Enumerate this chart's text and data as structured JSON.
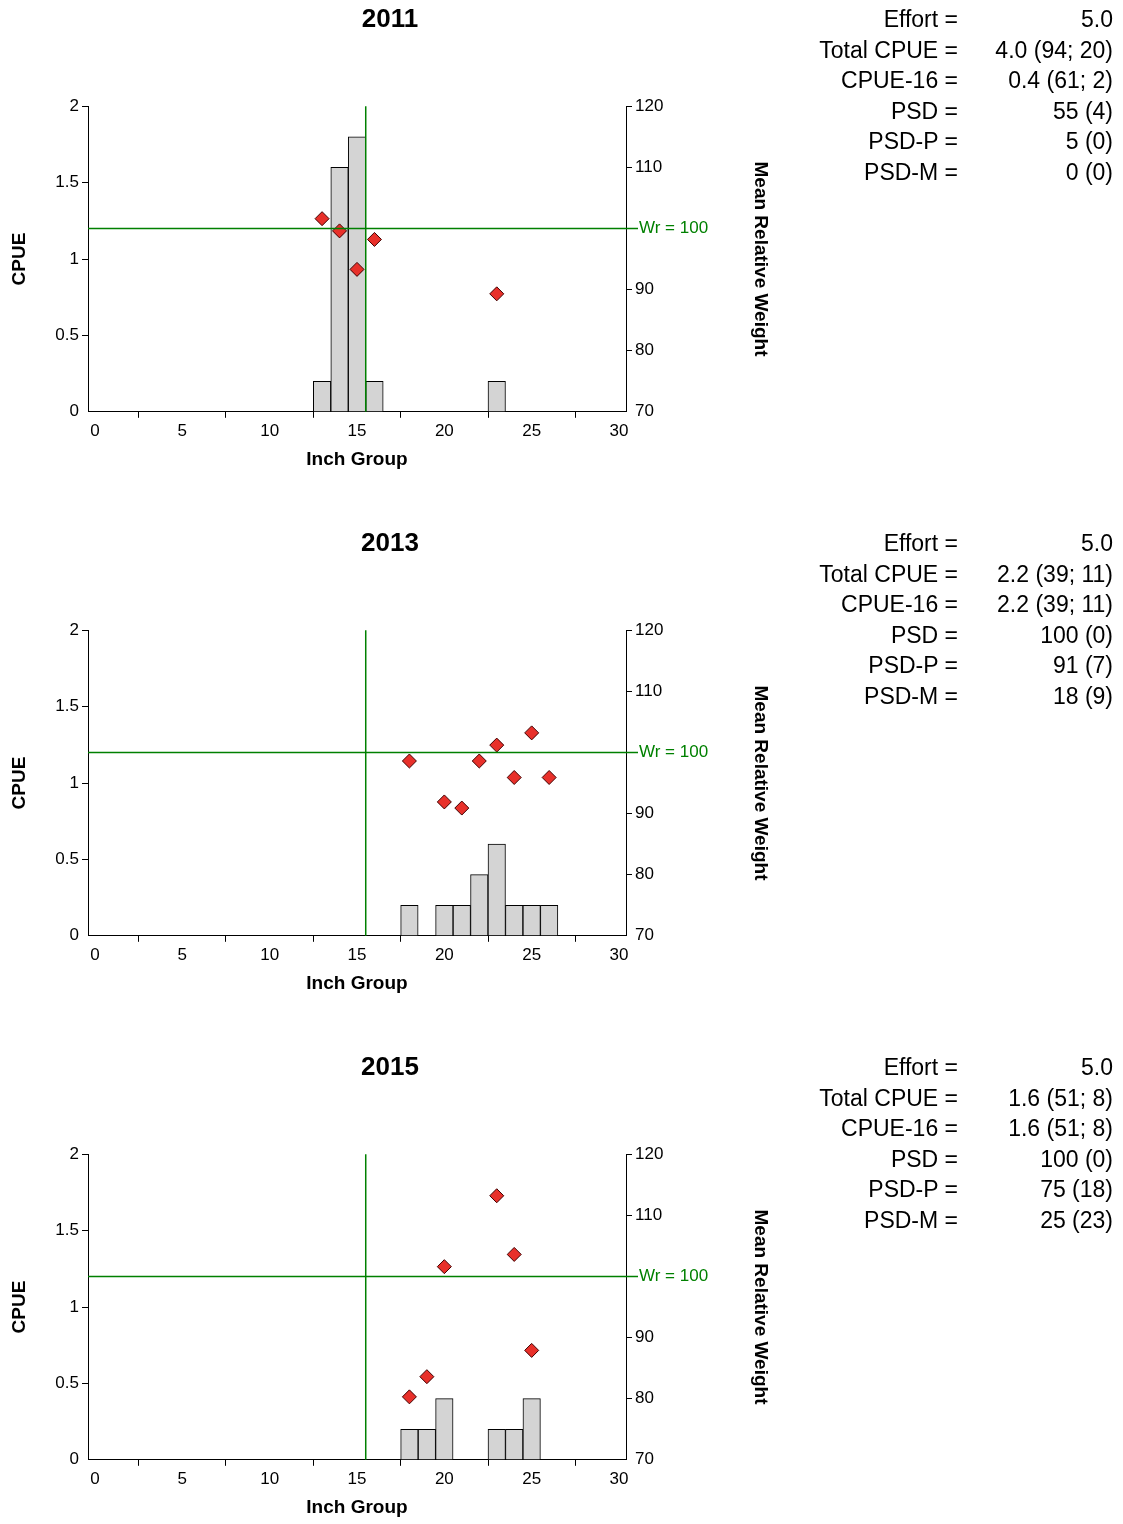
{
  "chart_data": [
    {
      "type": "bar",
      "title": "2011",
      "xlabel": "Inch Group",
      "ylabel": "CPUE",
      "y2label": "Mean Relative Weight",
      "xlim": [
        -0.4,
        30.4
      ],
      "xticks": [
        0,
        5,
        10,
        15,
        20,
        25,
        30
      ],
      "ylim": [
        0,
        2
      ],
      "yticks": [
        0,
        0.5,
        1,
        1.5,
        2
      ],
      "y2lim": [
        70,
        120
      ],
      "y2ticks": [
        70,
        80,
        90,
        110,
        120
      ],
      "grid": false,
      "legend": false,
      "marker": "diamond",
      "series": [
        {
          "type": "bar",
          "color": "#d4d4d4",
          "x": [
            13,
            14,
            15,
            16,
            23
          ],
          "values": [
            0.2,
            1.6,
            1.8,
            0.2,
            0.2
          ]
        },
        {
          "type": "scatter",
          "axis": "y2",
          "color": "#e8302a",
          "x": [
            13,
            14,
            15,
            16,
            23
          ],
          "values": [
            101.6,
            99.6,
            93.3,
            98.2,
            89.3
          ]
        }
      ],
      "ref_lines": [
        {
          "axis": "x",
          "value": 15.5,
          "color": "#008000"
        },
        {
          "axis": "y2",
          "value": 100,
          "label": "Wr = 100",
          "color": "#008000"
        }
      ],
      "annotations": [
        "Effort =",
        "5.0",
        "Total CPUE =",
        "4.0 (94; 20)",
        "CPUE-16 =",
        "0.4 (61; 2)",
        "PSD =",
        "55 (4)",
        "PSD-P =",
        "5 (0)",
        "PSD-M =",
        "0 (0)"
      ]
    },
    {
      "type": "bar",
      "title": "2013",
      "xlabel": "Inch Group",
      "ylabel": "CPUE",
      "y2label": "Mean Relative Weight",
      "xlim": [
        -0.4,
        30.4
      ],
      "xticks": [
        0,
        5,
        10,
        15,
        20,
        25,
        30
      ],
      "ylim": [
        0,
        2
      ],
      "yticks": [
        0,
        0.5,
        1,
        1.5,
        2
      ],
      "y2lim": [
        70,
        120
      ],
      "y2ticks": [
        70,
        80,
        90,
        110,
        120
      ],
      "grid": false,
      "legend": false,
      "marker": "diamond",
      "series": [
        {
          "type": "bar",
          "color": "#d4d4d4",
          "x": [
            18,
            20,
            21,
            22,
            23,
            24,
            25,
            26
          ],
          "values": [
            0.2,
            0.2,
            0.2,
            0.4,
            0.6,
            0.2,
            0.2,
            0.2
          ]
        },
        {
          "type": "scatter",
          "axis": "y2",
          "color": "#e8302a",
          "x": [
            18,
            20,
            21,
            22,
            23,
            24,
            25,
            26
          ],
          "values": [
            98.6,
            91.9,
            90.9,
            98.6,
            101.2,
            95.9,
            103.2,
            95.9
          ]
        }
      ],
      "ref_lines": [
        {
          "axis": "x",
          "value": 15.5,
          "color": "#008000"
        },
        {
          "axis": "y2",
          "value": 100,
          "label": "Wr = 100",
          "color": "#008000"
        }
      ],
      "annotations": [
        "Effort =",
        "5.0",
        "Total CPUE =",
        "2.2 (39; 11)",
        "CPUE-16 =",
        "2.2 (39; 11)",
        "PSD =",
        "100 (0)",
        "PSD-P =",
        "91 (7)",
        "PSD-M =",
        "18 (9)"
      ]
    },
    {
      "type": "bar",
      "title": "2015",
      "xlabel": "Inch Group",
      "ylabel": "CPUE",
      "y2label": "Mean Relative Weight",
      "xlim": [
        -0.4,
        30.4
      ],
      "xticks": [
        0,
        5,
        10,
        15,
        20,
        25,
        30
      ],
      "ylim": [
        0,
        2
      ],
      "yticks": [
        0,
        0.5,
        1,
        1.5,
        2
      ],
      "y2lim": [
        70,
        120
      ],
      "y2ticks": [
        70,
        80,
        90,
        110,
        120
      ],
      "grid": false,
      "legend": false,
      "marker": "diamond",
      "series": [
        {
          "type": "bar",
          "color": "#d4d4d4",
          "x": [
            18,
            19,
            20,
            23,
            24,
            25
          ],
          "values": [
            0.2,
            0.2,
            0.4,
            0.2,
            0.2,
            0.4
          ]
        },
        {
          "type": "scatter",
          "axis": "y2",
          "color": "#e8302a",
          "x": [
            18,
            19,
            20,
            23,
            24,
            25
          ],
          "values": [
            80.3,
            83.6,
            101.6,
            113.2,
            103.6,
            87.9
          ]
        }
      ],
      "ref_lines": [
        {
          "axis": "x",
          "value": 15.5,
          "color": "#008000"
        },
        {
          "axis": "y2",
          "value": 100,
          "label": "Wr = 100",
          "color": "#008000"
        }
      ],
      "annotations": [
        "Effort =",
        "5.0",
        "Total CPUE =",
        "1.6 (51; 8)",
        "CPUE-16 =",
        "1.6 (51; 8)",
        "PSD =",
        "100 (0)",
        "PSD-P =",
        "75 (18)",
        "PSD-M =",
        "25 (23)"
      ]
    }
  ]
}
